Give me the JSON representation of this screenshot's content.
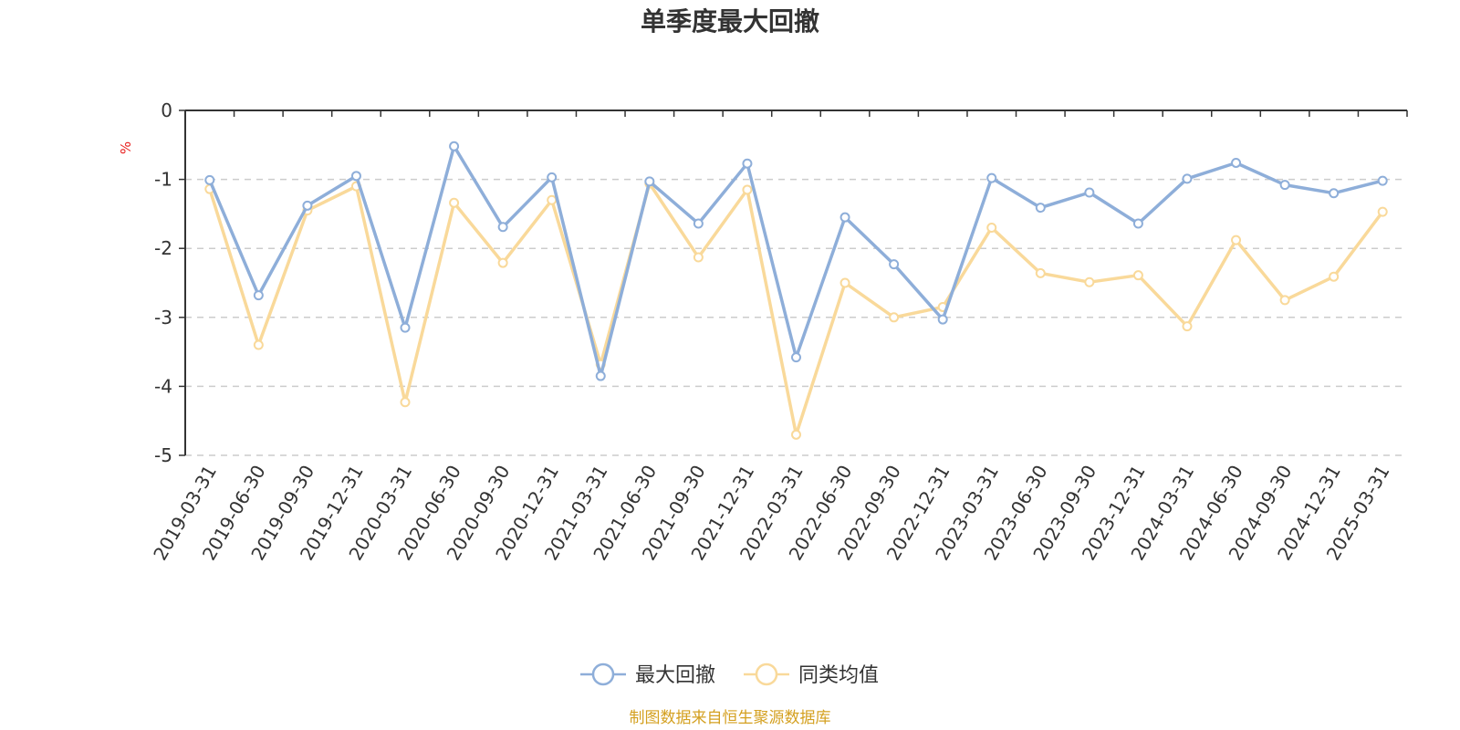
{
  "chart_data": {
    "type": "line",
    "title": "单季度最大回撤",
    "ylabel": "%",
    "xlabel": "",
    "ylim": [
      -5,
      0
    ],
    "yticks": [
      0,
      -1,
      -2,
      -3,
      -4,
      -5
    ],
    "grid": true,
    "legend_position": "bottom",
    "x": [
      "2019-03-31",
      "2019-06-30",
      "2019-09-30",
      "2019-12-31",
      "2020-03-31",
      "2020-06-30",
      "2020-09-30",
      "2020-12-31",
      "2021-03-31",
      "2021-06-30",
      "2021-09-30",
      "2021-12-31",
      "2022-03-31",
      "2022-06-30",
      "2022-09-30",
      "2022-12-31",
      "2023-03-31",
      "2023-06-30",
      "2023-09-30",
      "2023-12-31",
      "2024-03-31",
      "2024-06-30",
      "2024-09-30",
      "2024-12-31",
      "2025-03-31"
    ],
    "series": [
      {
        "name": "最大回撤",
        "color": "#8eaed9",
        "values": [
          -1.01,
          -2.68,
          -1.38,
          -0.95,
          -3.15,
          -0.52,
          -1.69,
          -0.97,
          -3.85,
          -1.03,
          -1.64,
          -0.77,
          -3.58,
          -1.55,
          -2.23,
          -3.03,
          -0.98,
          -1.41,
          -1.19,
          -1.64,
          -0.99,
          -0.76,
          -1.08,
          -1.2,
          -1.02
        ]
      },
      {
        "name": "同类均值",
        "color": "#f9d99a",
        "values": [
          -1.14,
          -3.4,
          -1.45,
          -1.1,
          -4.23,
          -1.34,
          -2.21,
          -1.3,
          -3.68,
          -1.06,
          -2.13,
          -1.15,
          -4.7,
          -2.5,
          -3.0,
          -2.85,
          -1.7,
          -2.36,
          -2.49,
          -2.39,
          -3.13,
          -1.88,
          -2.75,
          -2.41,
          -1.47
        ]
      }
    ]
  },
  "source_note": "制图数据来自恒生聚源数据库",
  "colors": {
    "axis": "#333333",
    "grid": "#cccccc",
    "unit": "#e8201f",
    "source": "#d4a020"
  }
}
